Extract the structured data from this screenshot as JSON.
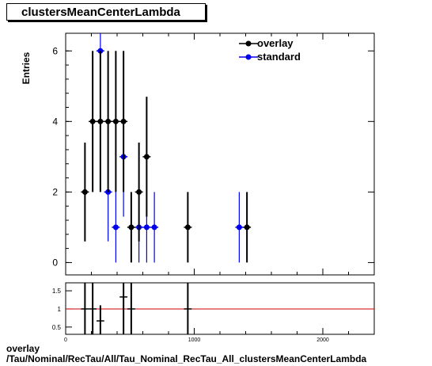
{
  "title": "clustersMeanCenterLambda",
  "footer": {
    "line1": "overlay",
    "line2": "/Tau/Nominal/RecTau/All/Tau_Nominal_RecTau_All_clustersMeanCenterLambda"
  },
  "colors": {
    "overlay": "#000000",
    "standard": "#0000ee",
    "ratio_line": "#cc0000"
  },
  "chart_data": [
    {
      "type": "scatter",
      "ylabel": "Entries",
      "xlim": [
        0,
        2400
      ],
      "ylim": [
        -0.35,
        6.5
      ],
      "yticks": [
        0,
        2,
        4,
        6
      ],
      "legend_placement": "top-right",
      "series": [
        {
          "name": "overlay",
          "points": [
            {
              "x": 150,
              "y": 2,
              "lo": 0.6,
              "hi": 3.4
            },
            {
              "x": 210,
              "y": 4,
              "lo": 2.0,
              "hi": 6.0
            },
            {
              "x": 270,
              "y": 4,
              "lo": 2.0,
              "hi": 6.0
            },
            {
              "x": 330,
              "y": 4,
              "lo": 2.0,
              "hi": 6.0
            },
            {
              "x": 390,
              "y": 4,
              "lo": 2.0,
              "hi": 6.0
            },
            {
              "x": 450,
              "y": 4,
              "lo": 2.0,
              "hi": 6.0
            },
            {
              "x": 510,
              "y": 1,
              "lo": 0.0,
              "hi": 2.0
            },
            {
              "x": 570,
              "y": 2,
              "lo": 0.6,
              "hi": 3.4
            },
            {
              "x": 630,
              "y": 3,
              "lo": 1.3,
              "hi": 4.7
            },
            {
              "x": 950,
              "y": 1,
              "lo": 0.0,
              "hi": 2.0
            },
            {
              "x": 1410,
              "y": 1,
              "lo": 0.0,
              "hi": 2.0
            }
          ]
        },
        {
          "name": "standard",
          "points": [
            {
              "x": 270,
              "y": 6,
              "lo": 3.6,
              "hi": 8.4
            },
            {
              "x": 330,
              "y": 2,
              "lo": 0.6,
              "hi": 3.4
            },
            {
              "x": 390,
              "y": 1,
              "lo": 0.0,
              "hi": 2.0
            },
            {
              "x": 450,
              "y": 3,
              "lo": 1.3,
              "hi": 4.7
            },
            {
              "x": 570,
              "y": 1,
              "lo": 0.0,
              "hi": 2.0
            },
            {
              "x": 630,
              "y": 1,
              "lo": 0.0,
              "hi": 2.0
            },
            {
              "x": 690,
              "y": 1,
              "lo": 0.0,
              "hi": 2.0
            },
            {
              "x": 1350,
              "y": 1,
              "lo": 0.0,
              "hi": 2.0
            }
          ]
        }
      ]
    },
    {
      "type": "scatter",
      "xlim": [
        0,
        2400
      ],
      "ylim": [
        0.3,
        1.72
      ],
      "yticks": [
        0.5,
        1,
        1.5
      ],
      "ytick_labels": [
        "0.5",
        "1",
        "1.5"
      ],
      "xticks": [
        0,
        1000,
        2000
      ],
      "xtick_labels": [
        "0",
        "1000",
        "2000"
      ],
      "reference_line": 1,
      "points": [
        {
          "x": 150,
          "y": 1.0,
          "lo": 0.3,
          "hi": 1.72,
          "xerr": 30
        },
        {
          "x": 210,
          "y": 1.0,
          "lo": 0.3,
          "hi": 1.72,
          "xerr": 30
        },
        {
          "x": 270,
          "y": 0.67,
          "lo": 0.3,
          "hi": 1.1,
          "xerr": 30
        },
        {
          "x": 450,
          "y": 1.33,
          "lo": 0.3,
          "hi": 1.72,
          "xerr": 30
        },
        {
          "x": 510,
          "y": 1.0,
          "lo": 0.3,
          "hi": 1.72,
          "xerr": 30
        },
        {
          "x": 950,
          "y": 1.0,
          "lo": 0.3,
          "hi": 1.72,
          "xerr": 30
        }
      ]
    }
  ]
}
